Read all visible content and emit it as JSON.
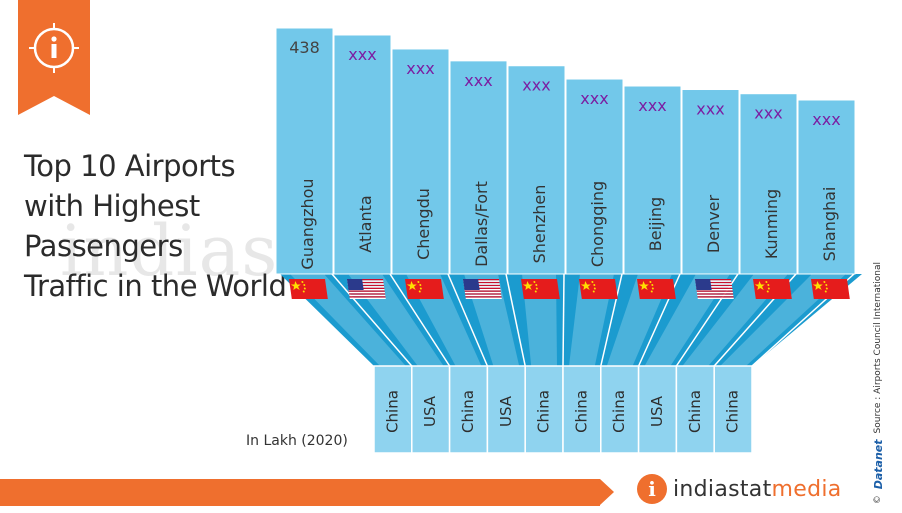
{
  "title_lines": [
    "Top 10 Airports",
    "with Highest",
    "Passengers",
    "Traffic in the World"
  ],
  "unit_note": "In Lakh (2020)",
  "source": "Source : Airports Council International",
  "brand": "Datanet",
  "copyright": "©",
  "logo": {
    "prefix": "indiastat",
    "suffix": "media"
  },
  "watermark": "indiastatmedia.com",
  "colors": {
    "bar": "#72c8ea",
    "band_dark": "#1b9bcf",
    "band_light": "#a5dcf1",
    "value": "#7b1fa2",
    "orange": "#ef6f2e"
  },
  "chart_data": {
    "type": "bar",
    "title": "Top 10 Airports with Highest Passengers Traffic in the World",
    "unit": "In Lakh (2020)",
    "categories": [
      "Guangzhou",
      "Atlanta",
      "Chengdu",
      "Dallas/Fort",
      "Shenzhen",
      "Chongqing",
      "Beijing",
      "Denver",
      "Kunming",
      "Shanghai"
    ],
    "countries": [
      "China",
      "USA",
      "China",
      "USA",
      "China",
      "China",
      "China",
      "USA",
      "China",
      "China"
    ],
    "value_labels": [
      "438",
      "xxx",
      "xxx",
      "xxx",
      "xxx",
      "xxx",
      "xxx",
      "xxx",
      "xxx",
      "xxx"
    ],
    "values": [
      438,
      428,
      408,
      391,
      384,
      365,
      355,
      350,
      344,
      335
    ],
    "bar_order": "descending"
  }
}
